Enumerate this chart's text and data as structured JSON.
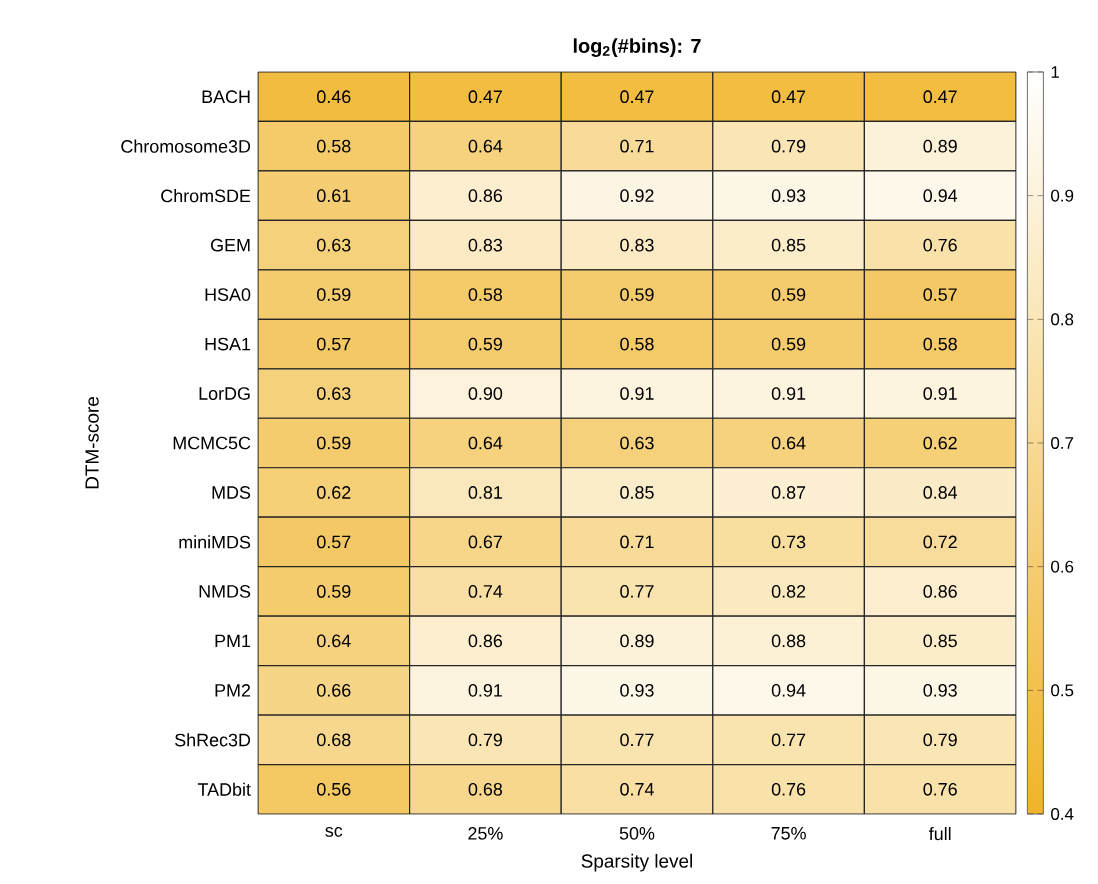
{
  "chart_data": {
    "type": "heatmap",
    "title": "log$_{2}$(#bins): 7",
    "xlabel": "Sparsity level",
    "ylabel": "DTM-score",
    "categories": [
      "sc",
      "25%",
      "50%",
      "75%",
      "full"
    ],
    "y_categories": [
      "BACH",
      "Chromosome3D",
      "ChromSDE",
      "GEM",
      "HSA0",
      "HSA1",
      "LorDG",
      "MCMC5C",
      "MDS",
      "miniMDS",
      "NMDS",
      "PM1",
      "PM2",
      "ShRec3D",
      "TADbit"
    ],
    "cells": [
      [
        0.46,
        0.47,
        0.47,
        0.47,
        0.47
      ],
      [
        0.58,
        0.64,
        0.71,
        0.79,
        0.89
      ],
      [
        0.61,
        0.86,
        0.92,
        0.93,
        0.94
      ],
      [
        0.63,
        0.83,
        0.83,
        0.85,
        0.76
      ],
      [
        0.59,
        0.58,
        0.59,
        0.59,
        0.57
      ],
      [
        0.57,
        0.59,
        0.58,
        0.59,
        0.58
      ],
      [
        0.63,
        0.9,
        0.91,
        0.91,
        0.91
      ],
      [
        0.59,
        0.64,
        0.63,
        0.64,
        0.62
      ],
      [
        0.62,
        0.81,
        0.85,
        0.87,
        0.84
      ],
      [
        0.57,
        0.67,
        0.71,
        0.73,
        0.72
      ],
      [
        0.59,
        0.74,
        0.77,
        0.82,
        0.86
      ],
      [
        0.64,
        0.86,
        0.89,
        0.88,
        0.85
      ],
      [
        0.66,
        0.91,
        0.93,
        0.94,
        0.93
      ],
      [
        0.68,
        0.79,
        0.77,
        0.77,
        0.79
      ],
      [
        0.56,
        0.68,
        0.74,
        0.76,
        0.76
      ]
    ],
    "cell_labels": [
      [
        "0.46",
        "0.47",
        "0.47",
        "0.47",
        "0.47"
      ],
      [
        "0.58",
        "0.64",
        "0.71",
        "0.79",
        "0.89"
      ],
      [
        "0.61",
        "0.86",
        "0.92",
        "0.93",
        "0.94"
      ],
      [
        "0.63",
        "0.83",
        "0.83",
        "0.85",
        "0.76"
      ],
      [
        "0.59",
        "0.58",
        "0.59",
        "0.59",
        "0.57"
      ],
      [
        "0.57",
        "0.59",
        "0.58",
        "0.59",
        "0.58"
      ],
      [
        "0.63",
        "0.90",
        "0.91",
        "0.91",
        "0.91"
      ],
      [
        "0.59",
        "0.64",
        "0.63",
        "0.64",
        "0.62"
      ],
      [
        "0.62",
        "0.81",
        "0.85",
        "0.87",
        "0.84"
      ],
      [
        "0.57",
        "0.67",
        "0.71",
        "0.73",
        "0.72"
      ],
      [
        "0.59",
        "0.74",
        "0.77",
        "0.82",
        "0.86"
      ],
      [
        "0.64",
        "0.86",
        "0.89",
        "0.88",
        "0.85"
      ],
      [
        "0.66",
        "0.91",
        "0.93",
        "0.94",
        "0.93"
      ],
      [
        "0.68",
        "0.79",
        "0.77",
        "0.77",
        "0.79"
      ],
      [
        "0.56",
        "0.68",
        "0.74",
        "0.76",
        "0.76"
      ]
    ],
    "data_labels": true,
    "clim": [
      0.4,
      1
    ],
    "cticks": [
      0.4,
      0.5,
      0.6,
      0.7,
      0.8,
      0.9,
      1
    ]
  }
}
